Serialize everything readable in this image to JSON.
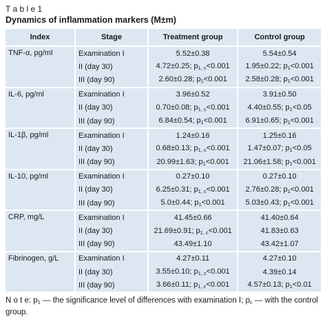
{
  "header": {
    "label": "T a b l e 1",
    "title": "Dynamics of inflammation markers (M±m)"
  },
  "table": {
    "columns": [
      "Index",
      "Stage",
      "Treatment group",
      "Control group"
    ],
    "groups": [
      {
        "index": "TNF-α, pg/ml",
        "rows": [
          [
            "Examination I",
            "5.52±0.38",
            "5.54±0.54"
          ],
          [
            "II (day 30)",
            [
              "4.72±0.25; p",
              "1, c",
              "<0.001"
            ],
            [
              "1.95±0.22; p",
              "1",
              "<0.001"
            ]
          ],
          [
            "III (day 90)",
            [
              "2.60±0.28; p",
              "1",
              "<0.001"
            ],
            [
              "2.58±0.28; p",
              "1",
              "<0.001"
            ]
          ]
        ]
      },
      {
        "index": "IL-6, pg/ml",
        "rows": [
          [
            "Examination I",
            "3.96±0.52",
            "3.91±0.50"
          ],
          [
            "II (day 30)",
            [
              "0.70±0.08; p",
              "1, c",
              "<0.001"
            ],
            [
              "4.40±0.55; p",
              "1",
              "<0.05"
            ]
          ],
          [
            "III (day 90)",
            [
              "6.84±0.54; p",
              "1",
              "<0.001"
            ],
            [
              "6.91±0.65; p",
              "1",
              "<0.001"
            ]
          ]
        ]
      },
      {
        "index": "IL-1β, pg/ml",
        "rows": [
          [
            "Examination I",
            "1.24±0.16",
            "1.25±0.16"
          ],
          [
            "II (day 30)",
            [
              "0.68±0.13; p",
              "1, c",
              "<0.001"
            ],
            [
              "1.47±0.07; p",
              "1",
              "<0.05"
            ]
          ],
          [
            "III (day 90)",
            [
              "20.99±1.63; p",
              "1",
              "<0.001"
            ],
            [
              "21.06±1.58; p",
              "1",
              "<0.001"
            ]
          ]
        ]
      },
      {
        "index": "IL-10, pg/ml",
        "rows": [
          [
            "Examination I",
            "0.27±0.10",
            "0.27±0.10"
          ],
          [
            "II (day 30)",
            [
              "6.25±0.31; p",
              "1, c",
              "<0.001"
            ],
            [
              "2.76±0.28; p",
              "1",
              "<0.001"
            ]
          ],
          [
            "III (day 90)",
            [
              "5.0±0.44; p",
              "1",
              "<0.001"
            ],
            [
              "5.03±0.43; p",
              "1",
              "<0.001"
            ]
          ]
        ]
      },
      {
        "index": "CRP, mg/L",
        "rows": [
          [
            "Examination I",
            "41.45±0.66",
            "41.40±0.64"
          ],
          [
            "II (day 30)",
            [
              "21.69±0.91; p",
              "1, c",
              "<0.001"
            ],
            "41.83±0.63"
          ],
          [
            "III (day 90)",
            "43.49±1.10",
            "43.42±1.07"
          ]
        ]
      },
      {
        "index": "Fibrinogen, g/L",
        "rows": [
          [
            "Examination I",
            "4.27±0.11",
            "4.27±0.10"
          ],
          [
            "II (day 30)",
            [
              "3.55±0.10; p",
              "1, c",
              "<0.001"
            ],
            "4.39±0.14"
          ],
          [
            "III (day 90)",
            [
              "3.66±0.11; p",
              "1, c",
              "<0.001"
            ],
            [
              "4.57±0.13; p",
              "1",
              "<0.01"
            ]
          ]
        ]
      }
    ]
  },
  "note": [
    "N o t e: p",
    "1",
    " — the significance level of differences with examination I; p",
    "c",
    " — with the control group."
  ]
}
